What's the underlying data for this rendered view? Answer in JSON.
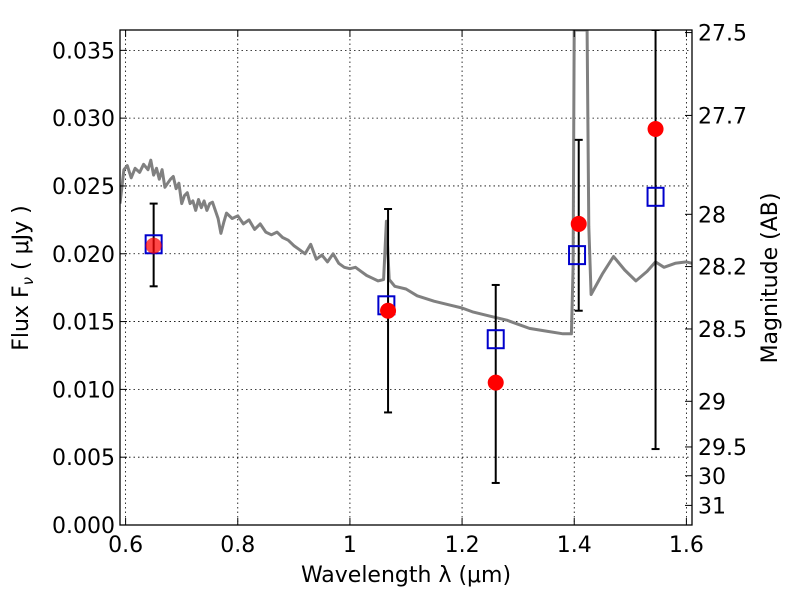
{
  "chart_data": {
    "type": "scatter",
    "xlabel": "Wavelength  λ (μm)",
    "ylabel_left": "Flux  F",
    "ylabel_left_sub": "ν",
    "ylabel_left_unit": "  ( μJy )",
    "ylabel_right": "Magnitude (AB)",
    "xlim": [
      0.59,
      1.61
    ],
    "ylim": [
      0.0,
      0.0365
    ],
    "x_ticks": [
      0.6,
      0.8,
      1.0,
      1.2,
      1.4,
      1.6
    ],
    "x_tick_labels": [
      "0.6",
      "0.8",
      "1",
      "1.2",
      "1.4",
      "1.6"
    ],
    "y_ticks": [
      0.0,
      0.005,
      0.01,
      0.015,
      0.02,
      0.025,
      0.03,
      0.035
    ],
    "y_tick_labels": [
      "0.000",
      "0.005",
      "0.010",
      "0.015",
      "0.020",
      "0.025",
      "0.030",
      "0.035"
    ],
    "right_ticks": [
      27.5,
      27.7,
      28,
      28.2,
      28.5,
      29,
      29.5,
      30,
      31
    ],
    "right_tick_labels": [
      "27.5",
      "27.7",
      "28",
      "28.2",
      "28.5",
      "29",
      "29.5",
      "30",
      "31"
    ],
    "grid": true,
    "series": [
      {
        "kind": "model-sed-line",
        "color": "#808080",
        "x": [
          0.59,
          0.597,
          0.603,
          0.61,
          0.617,
          0.625,
          0.632,
          0.64,
          0.645,
          0.65,
          0.655,
          0.66,
          0.665,
          0.67,
          0.675,
          0.68,
          0.685,
          0.69,
          0.695,
          0.7,
          0.705,
          0.71,
          0.715,
          0.72,
          0.725,
          0.73,
          0.735,
          0.74,
          0.745,
          0.75,
          0.755,
          0.76,
          0.765,
          0.77,
          0.775,
          0.78,
          0.79,
          0.8,
          0.81,
          0.82,
          0.83,
          0.84,
          0.85,
          0.86,
          0.87,
          0.88,
          0.89,
          0.9,
          0.91,
          0.92,
          0.93,
          0.94,
          0.95,
          0.96,
          0.97,
          0.98,
          0.99,
          1.0,
          1.01,
          1.02,
          1.03,
          1.04,
          1.05,
          1.06,
          1.065,
          1.07,
          1.08,
          1.1,
          1.12,
          1.15,
          1.18,
          1.2,
          1.22,
          1.25,
          1.28,
          1.3,
          1.32,
          1.35,
          1.38,
          1.395,
          1.398,
          1.4,
          1.42,
          1.423,
          1.426,
          1.43,
          1.45,
          1.47,
          1.49,
          1.51,
          1.53,
          1.545,
          1.56,
          1.58,
          1.6,
          1.61
        ],
        "y": [
          0.0237,
          0.0262,
          0.0265,
          0.0256,
          0.0263,
          0.026,
          0.0266,
          0.0262,
          0.0269,
          0.0258,
          0.0263,
          0.0255,
          0.0262,
          0.0249,
          0.0252,
          0.0255,
          0.0257,
          0.0248,
          0.0252,
          0.0237,
          0.0243,
          0.0245,
          0.0237,
          0.0239,
          0.0232,
          0.024,
          0.0234,
          0.0239,
          0.0232,
          0.0237,
          0.0238,
          0.0232,
          0.0226,
          0.0215,
          0.0223,
          0.023,
          0.0226,
          0.0228,
          0.0222,
          0.0225,
          0.0218,
          0.0222,
          0.0216,
          0.0214,
          0.0216,
          0.0212,
          0.021,
          0.0206,
          0.0203,
          0.02,
          0.0207,
          0.0196,
          0.0199,
          0.0194,
          0.02,
          0.0193,
          0.019,
          0.0189,
          0.019,
          0.0187,
          0.0184,
          0.0182,
          0.018,
          0.0181,
          0.0224,
          0.0181,
          0.0176,
          0.0174,
          0.0169,
          0.0165,
          0.0162,
          0.016,
          0.0157,
          0.0154,
          0.0151,
          0.0148,
          0.0145,
          0.0143,
          0.0141,
          0.0141,
          0.019,
          0.0365,
          0.0365,
          0.0365,
          0.022,
          0.017,
          0.0185,
          0.0198,
          0.0188,
          0.018,
          0.0187,
          0.0194,
          0.019,
          0.0193,
          0.0194,
          0.0193
        ]
      },
      {
        "kind": "model-bandpass-boxes",
        "color": "#0000cc",
        "x": [
          0.65,
          1.065,
          1.26,
          1.405,
          1.545
        ],
        "y": [
          0.0207,
          0.0162,
          0.0137,
          0.0199,
          0.0242
        ]
      },
      {
        "kind": "observed-points-with-errors",
        "color": "#ff0000",
        "x": [
          0.65,
          1.068,
          1.26,
          1.408,
          1.545
        ],
        "y": [
          0.0206,
          0.0158,
          0.0105,
          0.0222,
          0.0292
        ],
        "err_low": [
          0.0176,
          0.0083,
          0.0031,
          0.0158,
          0.0056
        ],
        "err_high": [
          0.0237,
          0.0233,
          0.0177,
          0.0284,
          0.0365
        ]
      }
    ]
  }
}
